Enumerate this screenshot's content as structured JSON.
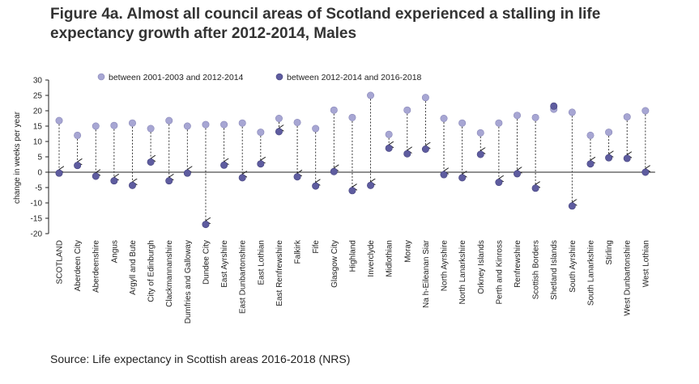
{
  "title": "Figure 4a. Almost all council areas of Scotland experienced a stalling in life expectancy growth after 2012-2014, Males",
  "source": "Source: Life expectancy in Scottish areas 2016-2018 (NRS)",
  "colors": {
    "series1": "#a7a6d3",
    "series2": "#5e5c9f",
    "axis": "#222222",
    "connector": "#222222"
  },
  "chart_data": {
    "type": "scatter",
    "ylabel": "change in weeks per year",
    "ylim": [
      -20,
      30
    ],
    "yticks": [
      30,
      25,
      20,
      15,
      10,
      5,
      0,
      -5,
      -10,
      -15,
      -20
    ],
    "legend_position": "top",
    "categories": [
      "SCOTLAND",
      "Aberdeen City",
      "Aberdeenshire",
      "Angus",
      "Argyll and Bute",
      "City of Edinburgh",
      "Clackmannanshire",
      "Dumfries and Galloway",
      "Dundee City",
      "East Ayrshire",
      "East Dunbartonshire",
      "East Lothian",
      "East Renfrewshire",
      "Falkirk",
      "Fife",
      "Glasgow City",
      "Highland",
      "Inverclyde",
      "Midlothian",
      "Moray",
      "Na h-Eileanan Siar",
      "North Ayrshire",
      "North Lanarkshire",
      "Orkney Islands",
      "Perth and Kinross",
      "Renfrewshire",
      "Scottish Borders",
      "Shetland Islands",
      "South Ayrshire",
      "South Lanarkshire",
      "Stirling",
      "West Dunbartonshire",
      "West Lothian"
    ],
    "series": [
      {
        "name": "between 2001-2003 and 2012-2014",
        "values": [
          16.8,
          12.0,
          15.0,
          15.2,
          16.0,
          14.2,
          16.8,
          15.0,
          15.5,
          15.5,
          16.0,
          13.0,
          17.5,
          16.2,
          14.2,
          20.2,
          17.8,
          25.0,
          12.3,
          20.2,
          24.3,
          17.5,
          16.0,
          12.8,
          16.0,
          18.5,
          17.8,
          20.5,
          19.5,
          12.0,
          13.0,
          18.0,
          20.0
        ]
      },
      {
        "name": "between 2012-2014 and 2016-2018",
        "values": [
          -0.3,
          2.2,
          -1.3,
          -2.8,
          -4.3,
          3.3,
          -2.8,
          -0.3,
          -17.0,
          2.3,
          -1.8,
          2.7,
          13.2,
          -1.5,
          -4.5,
          0.2,
          -6.0,
          -4.3,
          7.8,
          6.0,
          7.5,
          -0.8,
          -1.8,
          5.8,
          -3.3,
          -0.5,
          -5.2,
          21.5,
          -11.0,
          2.7,
          4.7,
          4.5,
          0.0
        ]
      }
    ]
  }
}
